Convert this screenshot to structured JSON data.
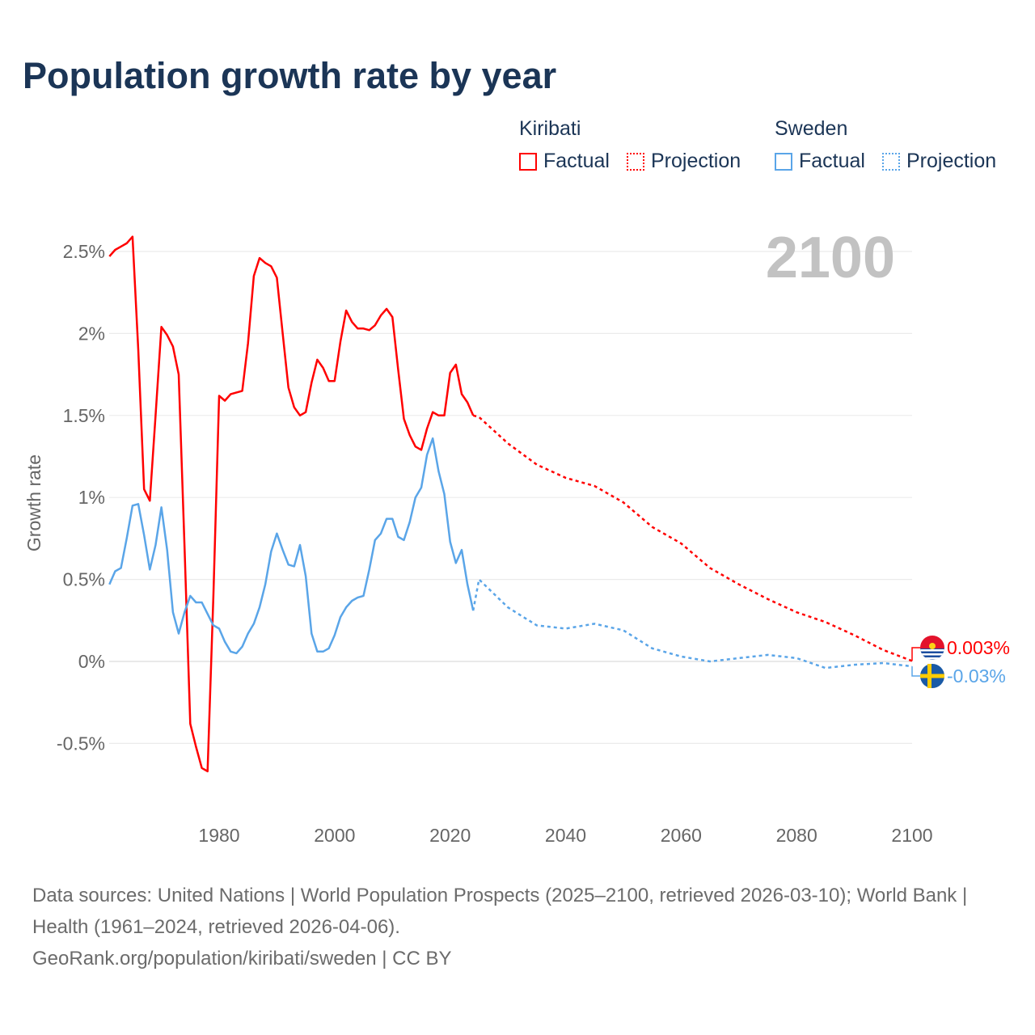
{
  "title": "Population growth rate by year",
  "legend": {
    "kiribati": {
      "name": "Kiribati",
      "factual": "Factual",
      "projection": "Projection"
    },
    "sweden": {
      "name": "Sweden",
      "factual": "Factual",
      "projection": "Projection"
    }
  },
  "footer": {
    "sources": "Data sources: United Nations | World Population Prospects (2025–2100, retrieved 2026-03-10); World Bank | Health (1961–2024, retrieved 2026-04-06).",
    "credit": "GeoRank.org/population/kiribati/sweden | CC BY"
  },
  "chart_data": {
    "type": "line",
    "title": "Population growth rate by year",
    "ylabel": "Growth rate",
    "xlabel": "",
    "year_watermark": "2100",
    "xlim": [
      1961,
      2100
    ],
    "ylim": [
      -0.85,
      2.75
    ],
    "xticks": [
      1980,
      2000,
      2020,
      2040,
      2060,
      2080,
      2100
    ],
    "yticks": [
      {
        "v": 2.5,
        "label": "2.5%"
      },
      {
        "v": 2,
        "label": "2%"
      },
      {
        "v": 1.5,
        "label": "1.5%"
      },
      {
        "v": 1,
        "label": "1%"
      },
      {
        "v": 0.5,
        "label": "0.5%"
      },
      {
        "v": 0,
        "label": "0%"
      },
      {
        "v": -0.5,
        "label": "-0.5%"
      }
    ],
    "grid": true,
    "legend_position": "top-right",
    "colors": {
      "kiribati": "#ff0000",
      "sweden": "#5aa5e8"
    },
    "series": [
      {
        "name": "Kiribati",
        "key": "kiribati",
        "end_label": "0.003%",
        "factual_start": 1961,
        "factual": [
          2.47,
          2.51,
          2.53,
          2.55,
          2.59,
          1.9,
          1.05,
          0.98,
          1.5,
          2.04,
          1.99,
          1.92,
          1.75,
          0.7,
          -0.38,
          -0.52,
          -0.65,
          -0.67,
          0.4,
          1.62,
          1.59,
          1.63,
          1.64,
          1.65,
          1.94,
          2.35,
          2.46,
          2.43,
          2.41,
          2.34,
          2.0,
          1.67,
          1.55,
          1.5,
          1.52,
          1.7,
          1.84,
          1.79,
          1.71,
          1.71,
          1.95,
          2.14,
          2.07,
          2.03,
          2.03,
          2.02,
          2.05,
          2.11,
          2.15,
          2.1,
          1.78,
          1.48,
          1.38,
          1.31,
          1.29,
          1.42,
          1.52,
          1.5,
          1.5,
          1.76,
          1.81,
          1.63,
          1.58,
          1.5
        ],
        "projection_years": [
          2024,
          2025,
          2030,
          2035,
          2040,
          2045,
          2050,
          2055,
          2060,
          2065,
          2070,
          2075,
          2080,
          2085,
          2090,
          2095,
          2100
        ],
        "projection": [
          1.5,
          1.49,
          1.33,
          1.2,
          1.12,
          1.07,
          0.97,
          0.82,
          0.72,
          0.57,
          0.47,
          0.38,
          0.3,
          0.24,
          0.16,
          0.07,
          0.003
        ]
      },
      {
        "name": "Sweden",
        "key": "sweden",
        "end_label": "-0.03%",
        "factual_start": 1961,
        "factual": [
          0.47,
          0.55,
          0.57,
          0.75,
          0.95,
          0.96,
          0.77,
          0.56,
          0.71,
          0.94,
          0.68,
          0.3,
          0.17,
          0.3,
          0.4,
          0.36,
          0.36,
          0.29,
          0.22,
          0.2,
          0.12,
          0.06,
          0.05,
          0.09,
          0.17,
          0.23,
          0.33,
          0.47,
          0.67,
          0.78,
          0.68,
          0.59,
          0.58,
          0.71,
          0.52,
          0.17,
          0.06,
          0.06,
          0.08,
          0.16,
          0.27,
          0.33,
          0.37,
          0.39,
          0.4,
          0.56,
          0.74,
          0.78,
          0.87,
          0.87,
          0.76,
          0.74,
          0.85,
          1.0,
          1.06,
          1.26,
          1.36,
          1.16,
          1.02,
          0.73,
          0.6,
          0.68,
          0.47,
          0.31
        ],
        "projection_years": [
          2024,
          2025,
          2030,
          2035,
          2040,
          2045,
          2050,
          2055,
          2060,
          2065,
          2070,
          2075,
          2080,
          2085,
          2090,
          2095,
          2100
        ],
        "projection": [
          0.31,
          0.5,
          0.33,
          0.22,
          0.2,
          0.23,
          0.19,
          0.08,
          0.03,
          0.0,
          0.02,
          0.04,
          0.02,
          -0.04,
          -0.02,
          -0.01,
          -0.03
        ]
      }
    ]
  }
}
